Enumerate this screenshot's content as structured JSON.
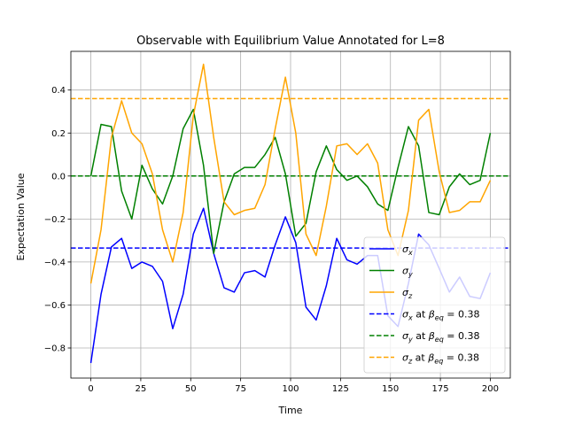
{
  "chart_data": {
    "type": "line",
    "title": "Observable with Equilibrium Value Annotated for L=8",
    "xlabel": "Time",
    "ylabel": "Expectation Value",
    "xlim": [
      -10,
      210
    ],
    "ylim": [
      -0.94,
      0.58
    ],
    "xticks": [
      0,
      25,
      50,
      75,
      100,
      125,
      150,
      175,
      200
    ],
    "yticks": [
      -0.8,
      -0.6,
      -0.4,
      -0.2,
      0.0,
      0.2,
      0.4
    ],
    "ytick_labels": [
      "−0.8",
      "−0.6",
      "−0.4",
      "−0.2",
      "0.0",
      "0.2",
      "0.4"
    ],
    "grid": true,
    "legend_position": "lower-right",
    "x": [
      0,
      5.1,
      10.3,
      15.4,
      20.5,
      25.6,
      30.8,
      35.9,
      41.0,
      46.2,
      51.3,
      56.4,
      61.5,
      66.7,
      71.8,
      76.9,
      82.1,
      87.2,
      92.3,
      97.4,
      102.6,
      107.7,
      112.8,
      117.9,
      123.1,
      128.2,
      133.3,
      138.5,
      143.6,
      148.7,
      153.8,
      159.0,
      164.1,
      169.2,
      174.4,
      179.5,
      184.6,
      189.7,
      194.9,
      200.0
    ],
    "series": [
      {
        "name": "σ_x",
        "color": "#0000ff",
        "style": "solid",
        "values": [
          -0.87,
          -0.55,
          -0.33,
          -0.29,
          -0.43,
          -0.4,
          -0.42,
          -0.49,
          -0.71,
          -0.55,
          -0.27,
          -0.15,
          -0.36,
          -0.52,
          -0.54,
          -0.45,
          -0.44,
          -0.47,
          -0.32,
          -0.19,
          -0.31,
          -0.61,
          -0.67,
          -0.51,
          -0.29,
          -0.39,
          -0.41,
          -0.37,
          -0.37,
          -0.65,
          -0.7,
          -0.5,
          -0.27,
          -0.32,
          -0.43,
          -0.54,
          -0.47,
          -0.56,
          -0.57,
          -0.45
        ]
      },
      {
        "name": "σ_y",
        "color": "#008000",
        "style": "solid",
        "values": [
          0.0,
          0.24,
          0.23,
          -0.07,
          -0.2,
          0.05,
          -0.06,
          -0.13,
          0.0,
          0.22,
          0.31,
          0.05,
          -0.36,
          -0.12,
          0.01,
          0.04,
          0.04,
          0.1,
          0.18,
          0.01,
          -0.28,
          -0.22,
          0.02,
          0.14,
          0.03,
          -0.02,
          0.0,
          -0.05,
          -0.13,
          -0.16,
          0.04,
          0.23,
          0.14,
          -0.17,
          -0.18,
          -0.05,
          0.01,
          -0.04,
          -0.02,
          0.2
        ]
      },
      {
        "name": "σ_z",
        "color": "#ffa500",
        "style": "solid",
        "values": [
          -0.5,
          -0.25,
          0.18,
          0.35,
          0.2,
          0.15,
          0.01,
          -0.25,
          -0.4,
          -0.17,
          0.28,
          0.52,
          0.18,
          -0.12,
          -0.18,
          -0.16,
          -0.15,
          -0.04,
          0.22,
          0.46,
          0.2,
          -0.27,
          -0.37,
          -0.14,
          0.14,
          0.15,
          0.1,
          0.15,
          0.06,
          -0.25,
          -0.37,
          -0.16,
          0.26,
          0.31,
          0.02,
          -0.17,
          -0.16,
          -0.12,
          -0.12,
          -0.02
        ]
      }
    ],
    "reference_lines": [
      {
        "name": "σ_x at β_eq = 0.38",
        "color": "#0000ff",
        "y": -0.335
      },
      {
        "name": "σ_y at β_eq = 0.38",
        "color": "#008000",
        "y": 0.0
      },
      {
        "name": "σ_z at β_eq = 0.38",
        "color": "#ffa500",
        "y": 0.36
      }
    ],
    "legend": [
      {
        "symbol": "σ",
        "sub": "x",
        "suffix": "",
        "color": "#0000ff",
        "style": "solid"
      },
      {
        "symbol": "σ",
        "sub": "y",
        "suffix": "",
        "color": "#008000",
        "style": "solid"
      },
      {
        "symbol": "σ",
        "sub": "z",
        "suffix": "",
        "color": "#ffa500",
        "style": "solid"
      },
      {
        "symbol": "σ",
        "sub": "x",
        "suffix": " at ",
        "beta": "β",
        "beta_sub": "eq",
        "eq": " = 0.38",
        "color": "#0000ff",
        "style": "dashed"
      },
      {
        "symbol": "σ",
        "sub": "y",
        "suffix": " at ",
        "beta": "β",
        "beta_sub": "eq",
        "eq": " = 0.38",
        "color": "#008000",
        "style": "dashed"
      },
      {
        "symbol": "σ",
        "sub": "z",
        "suffix": " at ",
        "beta": "β",
        "beta_sub": "eq",
        "eq": " = 0.38",
        "color": "#ffa500",
        "style": "dashed"
      }
    ]
  }
}
